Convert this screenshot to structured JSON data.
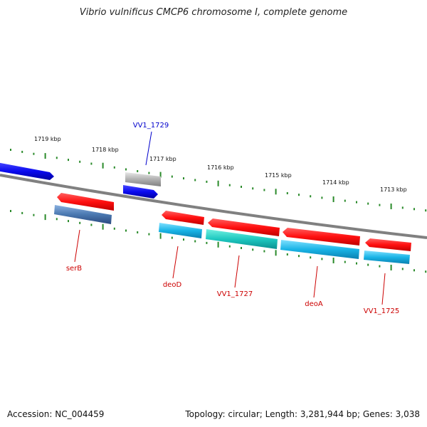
{
  "title": "Vibrio vulnificus CMCP6 chromosome I, complete genome",
  "footer": {
    "accession": "Accession: NC_004459",
    "summary": "Topology: circular; Length: 3,281,944 bp; Genes: 3,038"
  },
  "scale_labels": [
    "1719 kbp",
    "1718 kbp",
    "1717 kbp",
    "1716 kbp",
    "1715 kbp",
    "1714 kbp",
    "1713 kbp"
  ],
  "gene_labels": [
    {
      "name": "VV1_1729",
      "color": "#0000cc"
    },
    {
      "name": "serB",
      "color": "#cc0000"
    },
    {
      "name": "deoD",
      "color": "#cc0000"
    },
    {
      "name": "VV1_1727",
      "color": "#cc0000"
    },
    {
      "name": "deoA",
      "color": "#cc0000"
    },
    {
      "name": "VV1_1725",
      "color": "#cc0000"
    }
  ],
  "colors": {
    "forward_gene": "#1a1aff",
    "reverse_gene": "#ff1a1a",
    "backbone": "#808080",
    "tick": "#2a8a2a",
    "cds_cyan": "#19b4e6",
    "cds_teal": "#1ec8c0",
    "cds_steel": "#4a78b0",
    "pseudo_gray": "#b0b0b0"
  }
}
